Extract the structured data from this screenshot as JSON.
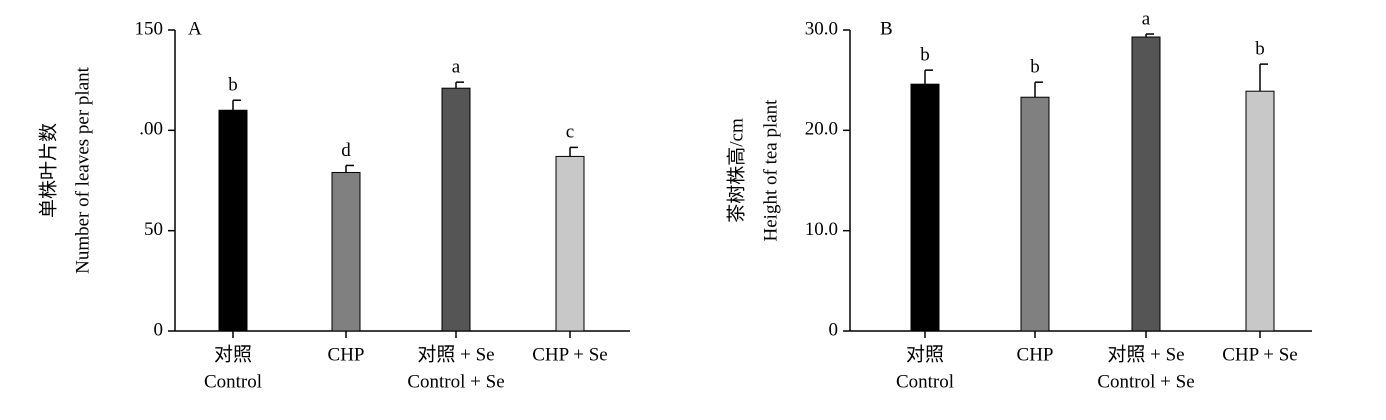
{
  "chart_data": [
    {
      "type": "bar",
      "panel": "A",
      "ylabel": [
        "单株叶片数",
        "Number of leaves per plant"
      ],
      "categories": [
        [
          "对照",
          "Control"
        ],
        [
          "CHP"
        ],
        [
          "对照 + Se",
          "Control + Se"
        ],
        [
          "CHP + Se"
        ]
      ],
      "values": [
        110,
        79,
        121,
        87
      ],
      "errors": [
        5,
        3.5,
        3,
        4.5
      ],
      "annotations": [
        "b",
        "d",
        "a",
        "c"
      ],
      "colors": [
        "#000000",
        "#808080",
        "#555555",
        "#c8c8c8"
      ],
      "ylim": [
        0,
        150
      ],
      "yticks": [
        0,
        50,
        {
          "value": 100,
          "label": ".00"
        },
        150
      ]
    },
    {
      "type": "bar",
      "panel": "B",
      "ylabel": [
        "茶树株高/cm",
        "Height of tea plant"
      ],
      "categories": [
        [
          "对照",
          "Control"
        ],
        [
          "CHP"
        ],
        [
          "对照 + Se",
          "Control + Se"
        ],
        [
          "CHP + Se"
        ]
      ],
      "values": [
        24.6,
        23.3,
        29.3,
        23.9
      ],
      "errors": [
        1.4,
        1.5,
        0.3,
        2.7
      ],
      "annotations": [
        "b",
        "b",
        "a",
        "b"
      ],
      "colors": [
        "#000000",
        "#808080",
        "#555555",
        "#c8c8c8"
      ],
      "ylim": [
        0,
        30
      ],
      "yticks": [
        0,
        {
          "value": 10,
          "label": "10.0"
        },
        {
          "value": 20,
          "label": "20.0"
        },
        {
          "value": 30,
          "label": "30.0"
        }
      ]
    }
  ]
}
